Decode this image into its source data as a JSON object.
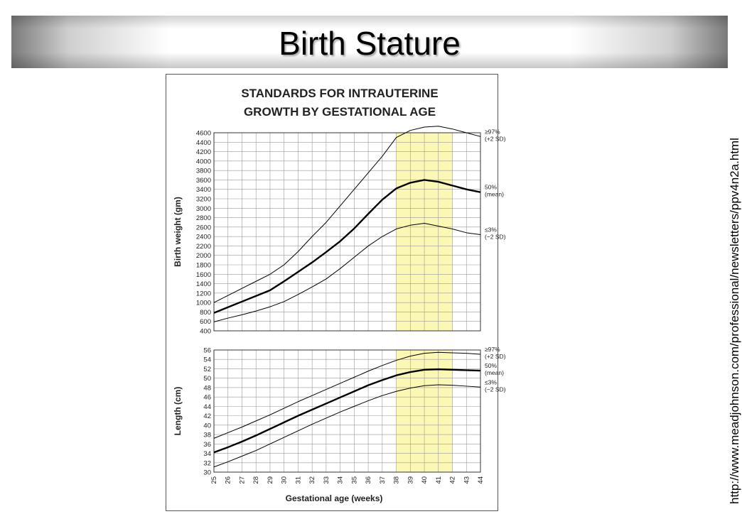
{
  "slide": {
    "title": "Birth Stature",
    "source_url": "http://www.meadjohnson.com/professional/newsletters/ppv4n2a.html"
  },
  "colors": {
    "highlight": "#fbf7b4",
    "grid": "#9a9a9a",
    "line": "#000000"
  },
  "chart_data": [
    {
      "type": "line",
      "title": "STANDARDS FOR INTRAUTERINE GROWTH BY GESTATIONAL AGE",
      "title_lines": [
        "STANDARDS FOR INTRAUTERINE",
        "GROWTH BY GESTATIONAL AGE"
      ],
      "ylabel": "Birth weight (gm)",
      "xlabel": "",
      "xlim": [
        25,
        44
      ],
      "ylim": [
        400,
        4600
      ],
      "yticks": [
        400,
        600,
        800,
        1000,
        1200,
        1400,
        1600,
        1800,
        2000,
        2200,
        2400,
        2600,
        2800,
        3000,
        3200,
        3400,
        3600,
        3800,
        4000,
        4200,
        4400,
        4600
      ],
      "highlight_x": [
        38,
        42
      ],
      "x": [
        25,
        26,
        27,
        28,
        29,
        30,
        31,
        32,
        33,
        34,
        35,
        36,
        37,
        38,
        39,
        40,
        41,
        42,
        43,
        44
      ],
      "series": [
        {
          "name": "≥97%",
          "sub": "(+2 SD)",
          "style": "thin",
          "values": [
            1000,
            1150,
            1300,
            1450,
            1600,
            1800,
            2080,
            2400,
            2700,
            3050,
            3400,
            3750,
            4100,
            4500,
            4650,
            4720,
            4740,
            4680,
            4600,
            4520
          ]
        },
        {
          "name": "50%",
          "sub": "(mean)",
          "style": "bold",
          "values": [
            780,
            900,
            1020,
            1140,
            1260,
            1450,
            1650,
            1850,
            2070,
            2300,
            2570,
            2880,
            3180,
            3420,
            3540,
            3600,
            3560,
            3480,
            3400,
            3340
          ]
        },
        {
          "name": "≤3%",
          "sub": "(−2 SD)",
          "style": "thin",
          "values": [
            590,
            670,
            740,
            820,
            910,
            1020,
            1170,
            1330,
            1500,
            1720,
            1960,
            2200,
            2400,
            2560,
            2640,
            2680,
            2620,
            2560,
            2480,
            2440
          ]
        }
      ]
    },
    {
      "type": "line",
      "ylabel": "Length (cm)",
      "xlabel": "Gestational age (weeks)",
      "xlim": [
        25,
        44
      ],
      "ylim": [
        30,
        56
      ],
      "yticks": [
        30,
        32,
        34,
        36,
        38,
        40,
        42,
        44,
        46,
        48,
        50,
        52,
        54,
        56
      ],
      "xticks": [
        25,
        26,
        27,
        28,
        29,
        30,
        31,
        32,
        33,
        34,
        35,
        36,
        37,
        38,
        39,
        40,
        41,
        42,
        43,
        44
      ],
      "highlight_x": [
        38,
        42
      ],
      "x": [
        25,
        26,
        27,
        28,
        29,
        30,
        31,
        32,
        33,
        34,
        35,
        36,
        37,
        38,
        39,
        40,
        41,
        42,
        43,
        44
      ],
      "series": [
        {
          "name": "≥97%",
          "sub": "(+2 SD)",
          "style": "thin",
          "values": [
            37.2,
            38.4,
            39.6,
            40.9,
            42.2,
            43.6,
            45,
            46.3,
            47.6,
            48.9,
            50.2,
            51.5,
            52.7,
            53.8,
            54.7,
            55.3,
            55.5,
            55.4,
            55.3,
            55.1
          ]
        },
        {
          "name": "50%",
          "sub": "(mean)",
          "style": "bold",
          "values": [
            34.2,
            35.3,
            36.5,
            37.8,
            39.2,
            40.6,
            42,
            43.3,
            44.6,
            45.9,
            47.2,
            48.5,
            49.6,
            50.6,
            51.3,
            51.8,
            51.9,
            51.8,
            51.7,
            51.6
          ]
        },
        {
          "name": "≤3%",
          "sub": "(−2 SD)",
          "style": "thin",
          "values": [
            31.1,
            32.2,
            33.4,
            34.6,
            36,
            37.4,
            38.8,
            40.2,
            41.5,
            42.8,
            44,
            45.2,
            46.3,
            47.2,
            47.9,
            48.4,
            48.6,
            48.5,
            48.3,
            48.1
          ]
        }
      ]
    }
  ]
}
